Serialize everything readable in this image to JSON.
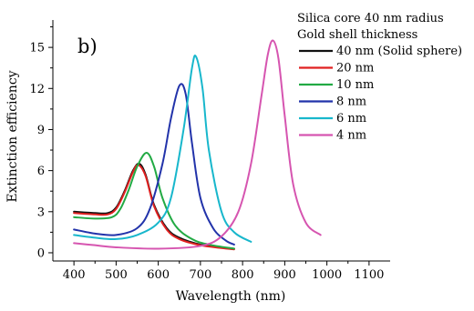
{
  "chart_data": {
    "type": "line",
    "panel_label": "b)",
    "xlabel": "Wavelength (nm)",
    "ylabel": "Extinction efficiency",
    "xlim": [
      350,
      1150
    ],
    "ylim": [
      -0.6,
      17
    ],
    "xticks": [
      400,
      500,
      600,
      700,
      800,
      900,
      1000,
      1100
    ],
    "yticks": [
      0,
      3,
      6,
      9,
      12,
      15
    ],
    "legend_heading": [
      "Silica core 40 nm radius",
      "Gold shell thickness"
    ],
    "legend_position": "top-right",
    "grid": false,
    "series": [
      {
        "name": "40 nm (Solid sphere)",
        "color": "#111111",
        "x": [
          400,
          450,
          480,
          500,
          520,
          540,
          555,
          570,
          590,
          620,
          650,
          700,
          750,
          780
        ],
        "y": [
          3.0,
          2.9,
          2.9,
          3.3,
          4.5,
          6.0,
          6.5,
          5.7,
          3.5,
          1.8,
          1.1,
          0.6,
          0.4,
          0.3
        ]
      },
      {
        "name": "20 nm",
        "color": "#e02020",
        "x": [
          400,
          450,
          480,
          500,
          520,
          540,
          553,
          570,
          590,
          620,
          650,
          700,
          750,
          780
        ],
        "y": [
          2.9,
          2.8,
          2.8,
          3.2,
          4.4,
          5.9,
          6.4,
          5.6,
          3.4,
          1.7,
          1.0,
          0.55,
          0.35,
          0.25
        ]
      },
      {
        "name": "10 nm",
        "color": "#22aa44",
        "x": [
          400,
          450,
          490,
          510,
          530,
          550,
          572,
          590,
          610,
          640,
          680,
          720,
          780
        ],
        "y": [
          2.6,
          2.5,
          2.6,
          3.2,
          4.6,
          6.3,
          7.3,
          6.3,
          4.0,
          2.0,
          1.0,
          0.6,
          0.3
        ]
      },
      {
        "name": "8 nm",
        "color": "#2233aa",
        "x": [
          400,
          450,
          500,
          550,
          580,
          610,
          630,
          650,
          665,
          680,
          700,
          730,
          760,
          780
        ],
        "y": [
          1.7,
          1.4,
          1.3,
          1.8,
          3.2,
          6.5,
          9.8,
          12.2,
          11.6,
          8.0,
          4.0,
          1.8,
          0.9,
          0.6
        ]
      },
      {
        "name": "6 nm",
        "color": "#18b7cc",
        "x": [
          400,
          450,
          500,
          550,
          600,
          630,
          660,
          680,
          690,
          705,
          720,
          750,
          780,
          820
        ],
        "y": [
          1.3,
          1.1,
          1.0,
          1.3,
          2.2,
          4.0,
          9.0,
          13.5,
          14.3,
          12.0,
          7.5,
          3.0,
          1.5,
          0.8
        ]
      },
      {
        "name": "4 nm",
        "color": "#d655b0",
        "x": [
          400,
          450,
          500,
          600,
          700,
          750,
          790,
          820,
          845,
          860,
          872,
          885,
          900,
          920,
          950,
          985
        ],
        "y": [
          0.7,
          0.55,
          0.4,
          0.3,
          0.5,
          1.2,
          3.0,
          6.5,
          11.5,
          14.5,
          15.5,
          14.2,
          10.0,
          5.0,
          2.2,
          1.3
        ]
      }
    ]
  }
}
